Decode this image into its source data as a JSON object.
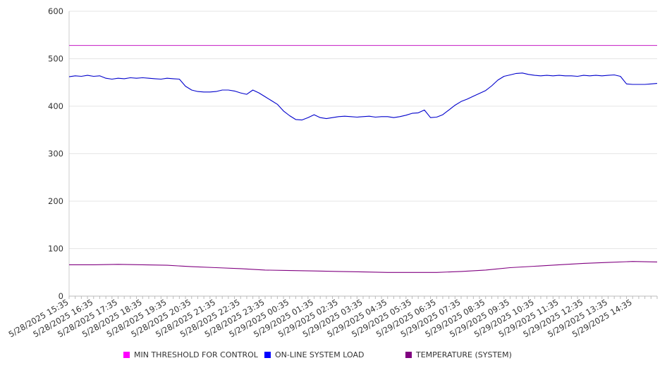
{
  "chart_data": {
    "type": "line",
    "title": "",
    "xlabel": "",
    "ylabel": "",
    "ylim": [
      0,
      600
    ],
    "yticks": [
      0,
      100,
      200,
      300,
      400,
      500,
      600
    ],
    "grid": true,
    "legend_position": "bottom",
    "x_tick_labels": [
      "5/28/2025 15:35",
      "5/28/2025 16:35",
      "5/28/2025 17:35",
      "5/28/2025 18:35",
      "5/28/2025 19:35",
      "5/28/2025 20:35",
      "5/28/2025 21:35",
      "5/28/2025 22:35",
      "5/28/2025 23:35",
      "5/29/2025 00:35",
      "5/29/2025 01:35",
      "5/29/2025 02:35",
      "5/29/2025 03:35",
      "5/29/2025 04:35",
      "5/29/2025 05:35",
      "5/29/2025 06:35",
      "5/29/2025 07:35",
      "5/29/2025 08:35",
      "5/29/2025 09:35",
      "5/29/2025 10:35",
      "5/29/2025 11:35",
      "5/29/2025 12:35",
      "5/29/2025 13:35",
      "5/29/2025 14:35"
    ],
    "x_end": "5/29/2025 15:35",
    "series": [
      {
        "name": "MIN THRESHOLD FOR CONTROL",
        "color": "#cc33cc",
        "points": [
          [
            "5/28/2025 15:35",
            528
          ],
          [
            "5/29/2025 15:35",
            528
          ]
        ]
      },
      {
        "name": "ON-LINE SYSTEM LOAD",
        "color": "#0000cc",
        "points": [
          [
            "5/28/2025 15:35",
            462
          ],
          [
            "5/28/2025 15:50",
            464
          ],
          [
            "5/28/2025 16:05",
            463
          ],
          [
            "5/28/2025 16:20",
            465
          ],
          [
            "5/28/2025 16:35",
            463
          ],
          [
            "5/28/2025 16:50",
            464
          ],
          [
            "5/28/2025 17:05",
            459
          ],
          [
            "5/28/2025 17:20",
            457
          ],
          [
            "5/28/2025 17:35",
            459
          ],
          [
            "5/28/2025 17:50",
            458
          ],
          [
            "5/28/2025 18:05",
            460
          ],
          [
            "5/28/2025 18:20",
            459
          ],
          [
            "5/28/2025 18:35",
            460
          ],
          [
            "5/28/2025 18:50",
            459
          ],
          [
            "5/28/2025 19:05",
            458
          ],
          [
            "5/28/2025 19:20",
            457
          ],
          [
            "5/28/2025 19:35",
            459
          ],
          [
            "5/28/2025 19:50",
            458
          ],
          [
            "5/28/2025 20:05",
            457
          ],
          [
            "5/28/2025 20:20",
            442
          ],
          [
            "5/28/2025 20:35",
            434
          ],
          [
            "5/28/2025 20:50",
            431
          ],
          [
            "5/28/2025 21:05",
            430
          ],
          [
            "5/28/2025 21:20",
            430
          ],
          [
            "5/28/2025 21:35",
            431
          ],
          [
            "5/28/2025 21:50",
            434
          ],
          [
            "5/28/2025 22:05",
            434
          ],
          [
            "5/28/2025 22:20",
            432
          ],
          [
            "5/28/2025 22:35",
            428
          ],
          [
            "5/28/2025 22:50",
            425
          ],
          [
            "5/28/2025 23:05",
            434
          ],
          [
            "5/28/2025 23:20",
            428
          ],
          [
            "5/28/2025 23:35",
            420
          ],
          [
            "5/28/2025 23:50",
            412
          ],
          [
            "5/29/2025 00:05",
            404
          ],
          [
            "5/29/2025 00:20",
            390
          ],
          [
            "5/29/2025 00:35",
            380
          ],
          [
            "5/29/2025 00:50",
            372
          ],
          [
            "5/29/2025 01:05",
            371
          ],
          [
            "5/29/2025 01:20",
            376
          ],
          [
            "5/29/2025 01:35",
            382
          ],
          [
            "5/29/2025 01:50",
            376
          ],
          [
            "5/29/2025 02:05",
            374
          ],
          [
            "5/29/2025 02:20",
            376
          ],
          [
            "5/29/2025 02:35",
            378
          ],
          [
            "5/29/2025 02:50",
            379
          ],
          [
            "5/29/2025 03:05",
            378
          ],
          [
            "5/29/2025 03:20",
            377
          ],
          [
            "5/29/2025 03:35",
            378
          ],
          [
            "5/29/2025 03:50",
            379
          ],
          [
            "5/29/2025 04:05",
            377
          ],
          [
            "5/29/2025 04:20",
            378
          ],
          [
            "5/29/2025 04:35",
            378
          ],
          [
            "5/29/2025 04:50",
            376
          ],
          [
            "5/29/2025 05:05",
            378
          ],
          [
            "5/29/2025 05:20",
            381
          ],
          [
            "5/29/2025 05:35",
            385
          ],
          [
            "5/29/2025 05:50",
            386
          ],
          [
            "5/29/2025 06:05",
            392
          ],
          [
            "5/29/2025 06:20",
            376
          ],
          [
            "5/29/2025 06:35",
            377
          ],
          [
            "5/29/2025 06:50",
            382
          ],
          [
            "5/29/2025 07:05",
            392
          ],
          [
            "5/29/2025 07:20",
            402
          ],
          [
            "5/29/2025 07:35",
            410
          ],
          [
            "5/29/2025 07:50",
            415
          ],
          [
            "5/29/2025 08:05",
            421
          ],
          [
            "5/29/2025 08:20",
            427
          ],
          [
            "5/29/2025 08:35",
            433
          ],
          [
            "5/29/2025 08:50",
            443
          ],
          [
            "5/29/2025 09:05",
            455
          ],
          [
            "5/29/2025 09:20",
            463
          ],
          [
            "5/29/2025 09:35",
            466
          ],
          [
            "5/29/2025 09:50",
            469
          ],
          [
            "5/29/2025 10:05",
            470
          ],
          [
            "5/29/2025 10:20",
            467
          ],
          [
            "5/29/2025 10:35",
            465
          ],
          [
            "5/29/2025 10:50",
            464
          ],
          [
            "5/29/2025 11:05",
            465
          ],
          [
            "5/29/2025 11:20",
            464
          ],
          [
            "5/29/2025 11:35",
            465
          ],
          [
            "5/29/2025 11:50",
            464
          ],
          [
            "5/29/2025 12:05",
            464
          ],
          [
            "5/29/2025 12:20",
            463
          ],
          [
            "5/29/2025 12:35",
            465
          ],
          [
            "5/29/2025 12:50",
            464
          ],
          [
            "5/29/2025 13:05",
            465
          ],
          [
            "5/29/2025 13:20",
            464
          ],
          [
            "5/29/2025 13:35",
            465
          ],
          [
            "5/29/2025 13:50",
            466
          ],
          [
            "5/29/2025 14:05",
            463
          ],
          [
            "5/29/2025 14:20",
            447
          ],
          [
            "5/29/2025 14:35",
            446
          ],
          [
            "5/29/2025 14:50",
            446
          ],
          [
            "5/29/2025 15:05",
            446
          ],
          [
            "5/29/2025 15:20",
            447
          ],
          [
            "5/29/2025 15:35",
            448
          ]
        ]
      },
      {
        "name": "TEMPERATURE (SYSTEM)",
        "color": "#800080",
        "points": [
          [
            "5/28/2025 15:35",
            66
          ],
          [
            "5/28/2025 16:35",
            66
          ],
          [
            "5/28/2025 17:35",
            67
          ],
          [
            "5/28/2025 18:35",
            66
          ],
          [
            "5/28/2025 19:35",
            65
          ],
          [
            "5/28/2025 20:35",
            62
          ],
          [
            "5/28/2025 21:35",
            60
          ],
          [
            "5/28/2025 22:35",
            58
          ],
          [
            "5/28/2025 23:35",
            55
          ],
          [
            "5/29/2025 00:35",
            54
          ],
          [
            "5/29/2025 01:35",
            53
          ],
          [
            "5/29/2025 02:35",
            52
          ],
          [
            "5/29/2025 03:35",
            51
          ],
          [
            "5/29/2025 04:35",
            50
          ],
          [
            "5/29/2025 05:35",
            50
          ],
          [
            "5/29/2025 06:35",
            50
          ],
          [
            "5/29/2025 07:35",
            52
          ],
          [
            "5/29/2025 08:35",
            55
          ],
          [
            "5/29/2025 09:35",
            60
          ],
          [
            "5/29/2025 10:35",
            63
          ],
          [
            "5/29/2025 11:35",
            66
          ],
          [
            "5/29/2025 12:35",
            69
          ],
          [
            "5/29/2025 13:35",
            71
          ],
          [
            "5/29/2025 14:35",
            73
          ],
          [
            "5/29/2025 15:35",
            72
          ]
        ]
      }
    ]
  }
}
